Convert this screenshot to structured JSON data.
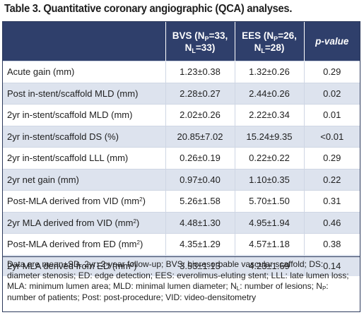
{
  "title": "Table 3. Quantitative coronary angiographic (QCA) analyses.",
  "header": {
    "col1": {
      "pre": "BVS (N",
      "sub1": "P",
      "mid": "=33, N",
      "sub2": "L",
      "post": "=33)"
    },
    "col2": {
      "pre": "EES (N",
      "sub1": "P",
      "mid": "=26, N",
      "sub2": "L",
      "post": "=28)"
    },
    "col3": "p-value"
  },
  "rows": [
    {
      "label": "Acute gain (mm)",
      "bvs": "1.23±0.38",
      "ees": "1.32±0.26",
      "p": "0.29"
    },
    {
      "label": "Post in-stent/scaffold MLD (mm)",
      "bvs": "2.28±0.27",
      "ees": "2.44±0.26",
      "p": "0.02"
    },
    {
      "label": "2yr in-stent/scaffold MLD (mm)",
      "bvs": "2.02±0.26",
      "ees": "2.22±0.34",
      "p": "0.01"
    },
    {
      "label": "2yr in-stent/scaffold DS (%)",
      "bvs": "20.85±7.02",
      "ees": "15.24±9.35",
      "p": "<0.01"
    },
    {
      "label": "2yr in-stent/scaffold LLL (mm)",
      "bvs": "0.26±0.19",
      "ees": "0.22±0.22",
      "p": "0.29"
    },
    {
      "label": "2yr net gain (mm)",
      "bvs": "0.97±0.40",
      "ees": "1.10±0.35",
      "p": "0.22"
    },
    {
      "label": "Post-MLA derived from VID (mm",
      "sup": "2",
      "close": ")",
      "bvs": "5.26±1.58",
      "ees": "5.70±1.50",
      "p": "0.31"
    },
    {
      "label": "2yr MLA derived from VID (mm",
      "sup": "2",
      "close": ")",
      "bvs": "4.48±1.30",
      "ees": "4.95±1.94",
      "p": "0.46"
    },
    {
      "label": "Post-MLA derived from ED (mm",
      "sup": "2",
      "close": ")",
      "bvs": "4.35±1.29",
      "ees": "4.57±1.18",
      "p": "0.38"
    },
    {
      "label": "2yr MLA derived from ED (mm",
      "sup": "2",
      "close": ")",
      "bvs": "3.53±1.13",
      "ees": "4.23±1.69",
      "p": "0.14"
    }
  ],
  "notes": {
    "part1": "Data are mean±SD. 2yr: 2-year follow-up; BVS: bioresorbable vascular scaffold; DS: diameter stenosis; ED: edge detection; EES: everolimus-eluting stent; LLL: late lumen loss; MLA: minimum lumen area; MLD: minimal lumen diameter; N",
    "sub1": "L",
    "part2": ": number of lesions; N",
    "sub2": "P",
    "part3": ": number of patients; Post: post-procedure; VID: video-densitometry"
  },
  "colors": {
    "header_bg": "#2f3f6b",
    "stripe": "#dde3ee",
    "border": "#2d3a5c"
  }
}
